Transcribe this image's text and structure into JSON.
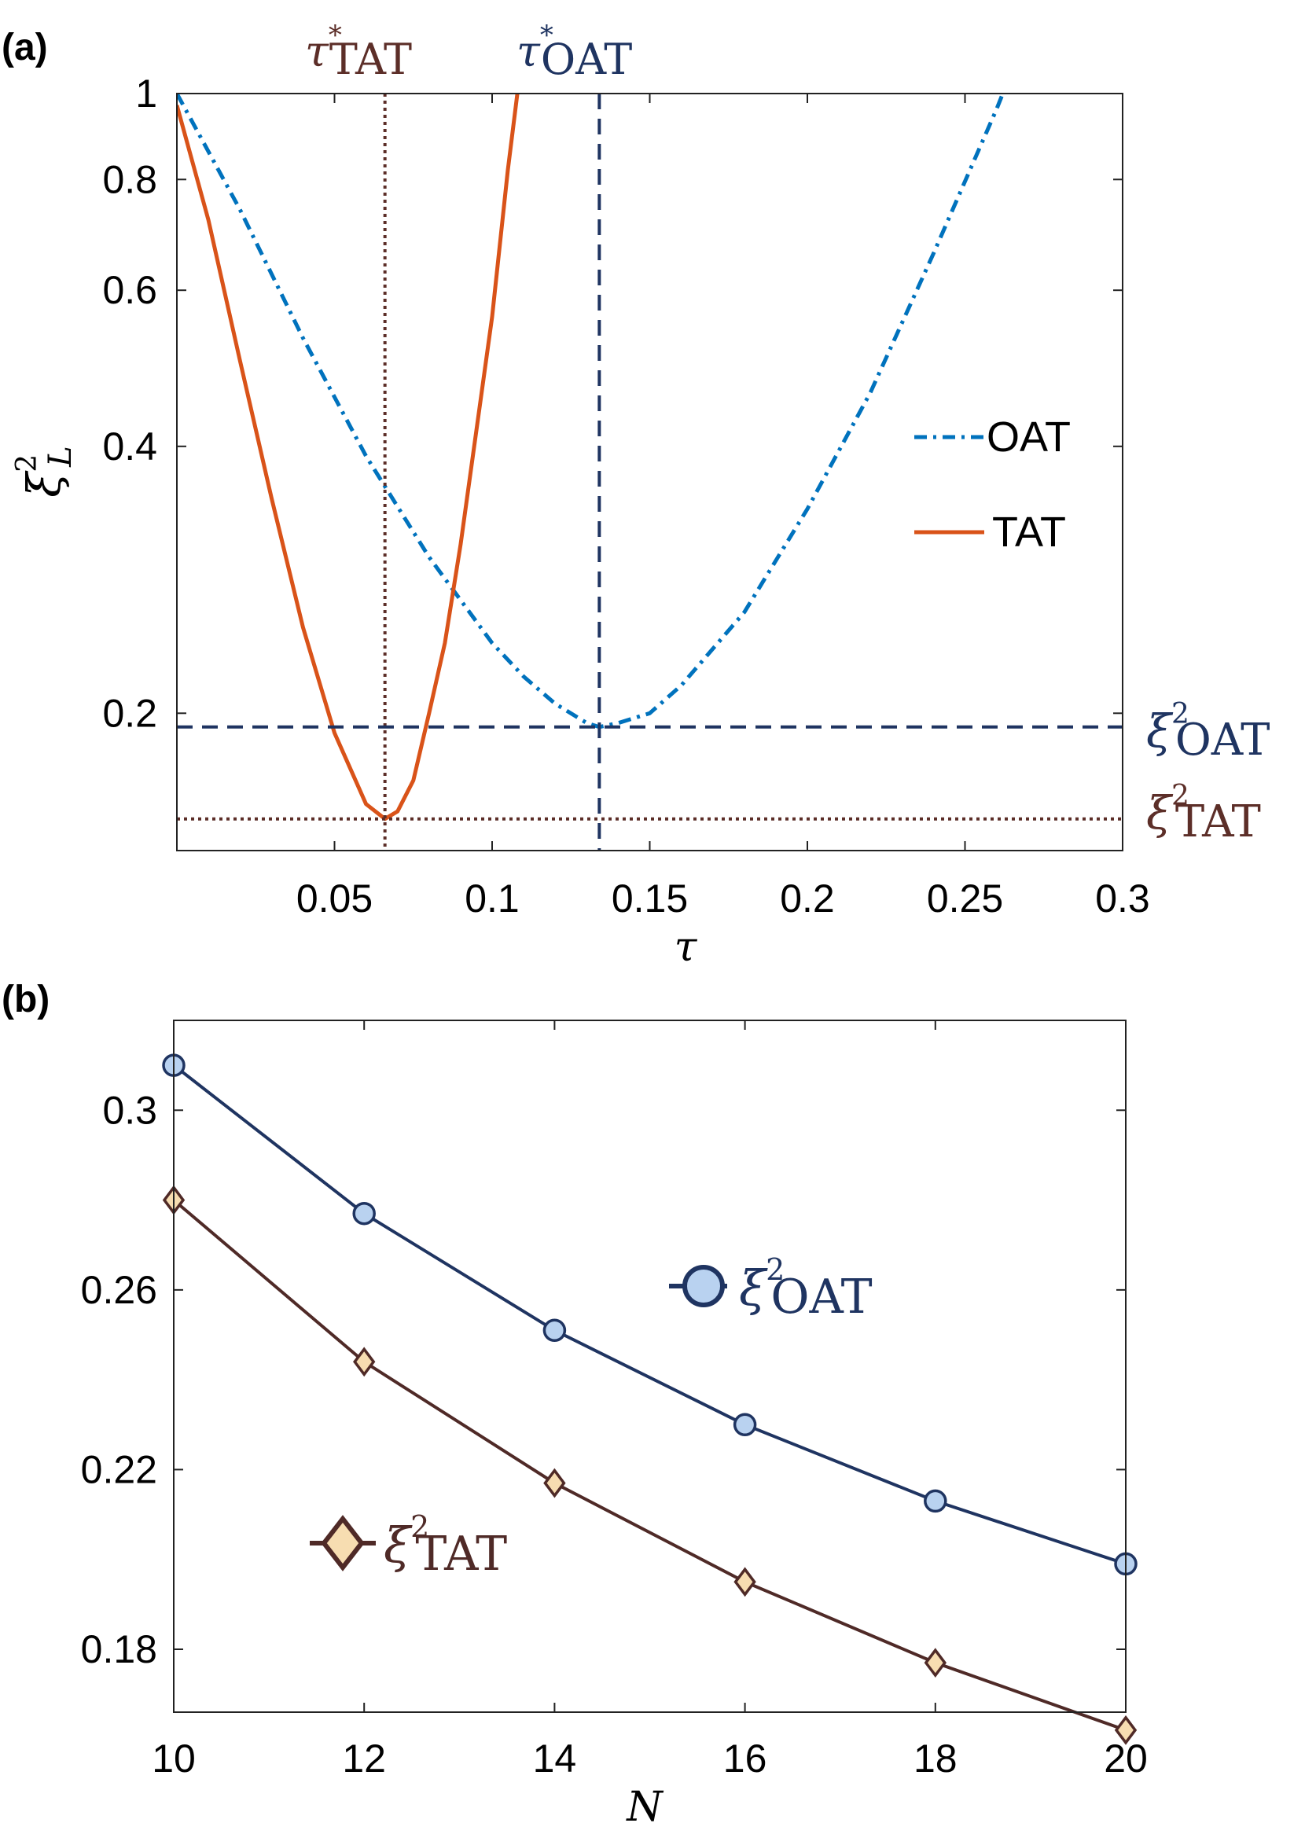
{
  "chart_data": [
    {
      "panel": "(a)",
      "type": "line",
      "xlabel": "τ",
      "ylabel": {
        "base": "ξ",
        "sup": "2",
        "sub": "L"
      },
      "xlim": [
        0,
        0.3
      ],
      "ylim": [
        0.14,
        1
      ],
      "yscale": "log",
      "xticks": [
        0.05,
        0.1,
        0.15,
        0.2,
        0.25,
        0.3
      ],
      "xtick_labels": [
        "0.05",
        "0.1",
        "0.15",
        "0.2",
        "0.25",
        "0.3"
      ],
      "yticks": [
        0.2,
        0.4,
        0.6,
        0.8,
        1
      ],
      "ytick_labels": [
        "0.2",
        "0.4",
        "0.6",
        "0.8",
        "1"
      ],
      "legend_position": "right",
      "series": [
        {
          "name": "OAT",
          "style": "dash-dot",
          "color": "#0072BD",
          "x": [
            0,
            0.02,
            0.04,
            0.06,
            0.08,
            0.1,
            0.11,
            0.12,
            0.13,
            0.134,
            0.14,
            0.15,
            0.16,
            0.18,
            0.2,
            0.22,
            0.24,
            0.26,
            0.262
          ],
          "y": [
            1.0,
            0.74,
            0.53,
            0.39,
            0.3,
            0.24,
            0.22,
            0.205,
            0.195,
            0.193,
            0.195,
            0.2,
            0.215,
            0.26,
            0.34,
            0.46,
            0.66,
            0.96,
            1.0
          ]
        },
        {
          "name": "TAT",
          "style": "solid",
          "color": "#D95319",
          "x": [
            0,
            0.01,
            0.02,
            0.03,
            0.04,
            0.05,
            0.06,
            0.066,
            0.07,
            0.075,
            0.08,
            0.085,
            0.09,
            0.1,
            0.105,
            0.108
          ],
          "y": [
            0.97,
            0.72,
            0.5,
            0.35,
            0.25,
            0.19,
            0.158,
            0.152,
            0.155,
            0.168,
            0.2,
            0.24,
            0.31,
            0.56,
            0.82,
            1.0
          ]
        }
      ],
      "reference_lines": [
        {
          "orientation": "vertical",
          "x": 0.066,
          "style": "dotted",
          "color": "#5C2E28",
          "label": {
            "base": "τ",
            "sup": "*",
            "sub": "TAT"
          }
        },
        {
          "orientation": "vertical",
          "x": 0.134,
          "style": "dashed",
          "color": "#1F3461",
          "label": {
            "base": "τ",
            "sup": "*",
            "sub": "OAT"
          }
        },
        {
          "orientation": "horizontal",
          "y": 0.193,
          "style": "dashed",
          "color": "#1F3461",
          "label": {
            "base": "ξ",
            "sup": "2",
            "sub": "OAT"
          }
        },
        {
          "orientation": "horizontal",
          "y": 0.152,
          "style": "dotted",
          "color": "#5C2E28",
          "label": {
            "base": "ξ",
            "sup": "2",
            "sub": "TAT"
          }
        }
      ],
      "grid": false
    },
    {
      "panel": "(b)",
      "type": "line",
      "xlabel": "N",
      "ylabel": "",
      "xlim": [
        10,
        20
      ],
      "ylim": [
        0.166,
        0.32
      ],
      "xticks": [
        10,
        12,
        14,
        16,
        18,
        20
      ],
      "xtick_labels": [
        "10",
        "12",
        "14",
        "16",
        "18",
        "20"
      ],
      "yticks": [
        0.18,
        0.22,
        0.26,
        0.3
      ],
      "ytick_labels": [
        "0.18",
        "0.22",
        "0.26",
        "0.3"
      ],
      "legend_position": "inline",
      "series": [
        {
          "name": {
            "base": "ξ",
            "sup": "2",
            "sub": "OAT"
          },
          "marker": "circle",
          "color": "#1F3461",
          "fill": "#B9D2F0",
          "x": [
            10,
            12,
            14,
            16,
            18,
            20
          ],
          "y": [
            0.31,
            0.277,
            0.251,
            0.23,
            0.213,
            0.199
          ]
        },
        {
          "name": {
            "base": "ξ",
            "sup": "2",
            "sub": "TAT"
          },
          "marker": "diamond",
          "color": "#4F2A27",
          "fill": "#F7DDB1",
          "x": [
            10,
            12,
            14,
            16,
            18,
            20
          ],
          "y": [
            0.28,
            0.244,
            0.217,
            0.195,
            0.177,
            0.162
          ]
        }
      ],
      "grid": false
    }
  ]
}
